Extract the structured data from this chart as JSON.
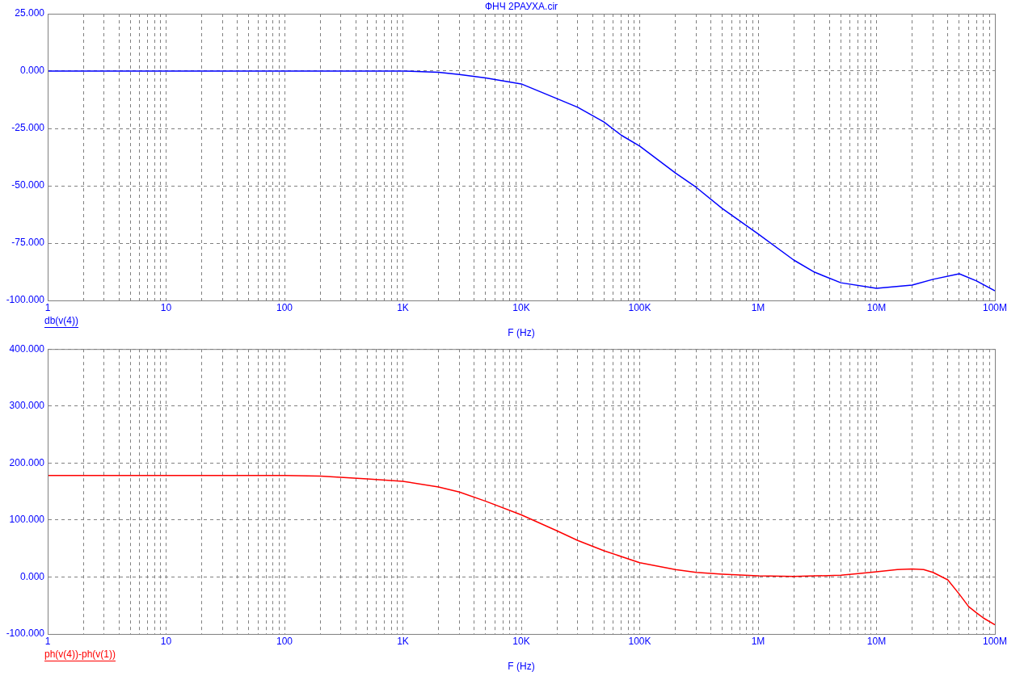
{
  "chart_data": [
    {
      "type": "line",
      "title": "ФНЧ 2РАУХА.cir",
      "xlabel": "F (Hz)",
      "log": "x",
      "grid": true,
      "legend": "bottom left",
      "xlim": [
        1,
        100000000
      ],
      "ylim": [
        -100,
        25
      ],
      "xticks": [
        1,
        {
          "value": 2,
          "label": null
        },
        {
          "value": 3,
          "label": null
        },
        {
          "value": 4,
          "label": null
        },
        {
          "value": 5,
          "label": null
        },
        {
          "value": 6,
          "label": null
        },
        {
          "value": 7,
          "label": null
        },
        {
          "value": 8,
          "label": null
        },
        {
          "value": 9,
          "label": null
        },
        10,
        {
          "value": 20,
          "label": null
        },
        {
          "value": 30,
          "label": null
        },
        {
          "value": 40,
          "label": null
        },
        {
          "value": 50,
          "label": null
        },
        {
          "value": 60,
          "label": null
        },
        {
          "value": 70,
          "label": null
        },
        {
          "value": 80,
          "label": null
        },
        {
          "value": 90,
          "label": null
        },
        100,
        {
          "value": 200,
          "label": null
        },
        {
          "value": 300,
          "label": null
        },
        {
          "value": 400,
          "label": null
        },
        {
          "value": 500,
          "label": null
        },
        {
          "value": 600,
          "label": null
        },
        {
          "value": 700,
          "label": null
        },
        {
          "value": 800,
          "label": null
        },
        {
          "value": 900,
          "label": null
        },
        {
          "value": 1000,
          "label": "1K"
        },
        {
          "value": 2000,
          "label": null
        },
        {
          "value": 3000,
          "label": null
        },
        {
          "value": 4000,
          "label": null
        },
        {
          "value": 5000,
          "label": null
        },
        {
          "value": 6000,
          "label": null
        },
        {
          "value": 7000,
          "label": null
        },
        {
          "value": 8000,
          "label": null
        },
        {
          "value": 9000,
          "label": null
        },
        {
          "value": 10000,
          "label": "10K"
        },
        {
          "value": 20000,
          "label": null
        },
        {
          "value": 30000,
          "label": null
        },
        {
          "value": 40000,
          "label": null
        },
        {
          "value": 50000,
          "label": null
        },
        {
          "value": 60000,
          "label": null
        },
        {
          "value": 70000,
          "label": null
        },
        {
          "value": 80000,
          "label": null
        },
        {
          "value": 90000,
          "label": null
        },
        {
          "value": 100000,
          "label": "100K"
        },
        {
          "value": 200000,
          "label": null
        },
        {
          "value": 300000,
          "label": null
        },
        {
          "value": 400000,
          "label": null
        },
        {
          "value": 500000,
          "label": null
        },
        {
          "value": 600000,
          "label": null
        },
        {
          "value": 700000,
          "label": null
        },
        {
          "value": 800000,
          "label": null
        },
        {
          "value": 900000,
          "label": null
        },
        {
          "value": 1000000,
          "label": "1M"
        },
        {
          "value": 2000000,
          "label": null
        },
        {
          "value": 3000000,
          "label": null
        },
        {
          "value": 4000000,
          "label": null
        },
        {
          "value": 5000000,
          "label": null
        },
        {
          "value": 6000000,
          "label": null
        },
        {
          "value": 7000000,
          "label": null
        },
        {
          "value": 8000000,
          "label": null
        },
        {
          "value": 9000000,
          "label": null
        },
        {
          "value": 10000000,
          "label": "10M"
        },
        {
          "value": 20000000,
          "label": null
        },
        {
          "value": 30000000,
          "label": null
        },
        {
          "value": 40000000,
          "label": null
        },
        {
          "value": 50000000,
          "label": null
        },
        {
          "value": 60000000,
          "label": null
        },
        {
          "value": 70000000,
          "label": null
        },
        {
          "value": 80000000,
          "label": null
        },
        {
          "value": 90000000,
          "label": null
        },
        {
          "value": 100000000,
          "label": "100M"
        }
      ],
      "yticks": [
        {
          "value": -100,
          "label": "-100.000"
        },
        {
          "value": -75,
          "label": "-75.000"
        },
        {
          "value": -50,
          "label": "-50.000"
        },
        {
          "value": -25,
          "label": "-25.000"
        },
        {
          "value": 0,
          "label": "0.000"
        },
        {
          "value": 25,
          "label": "25.000"
        }
      ],
      "series": [
        {
          "name": "db(v(4))",
          "color": "#0000ff",
          "x": [
            1,
            10,
            100,
            1000,
            2000,
            3000,
            5000,
            10000,
            20000,
            30000,
            50000,
            70000,
            100000,
            200000,
            300000,
            500000,
            1000000,
            2000000,
            3000000,
            5000000,
            10000000,
            20000000,
            30000000,
            50000000,
            70000000,
            100000000
          ],
          "values": [
            0,
            0,
            0,
            0,
            -0.5,
            -1.5,
            -3,
            -5.6,
            -12,
            -15.8,
            -22.2,
            -28,
            -32.7,
            -44.4,
            -50.7,
            -60,
            -71,
            -82.4,
            -87.7,
            -92.3,
            -94.7,
            -93.3,
            -90.8,
            -88.4,
            -91.5,
            -95.8
          ]
        }
      ]
    },
    {
      "type": "line",
      "xlabel": "F (Hz)",
      "log": "x",
      "grid": true,
      "legend": "bottom left",
      "xlim": [
        1,
        100000000
      ],
      "ylim": [
        -100,
        400
      ],
      "xticks": [
        1,
        {
          "value": 2,
          "label": null
        },
        {
          "value": 3,
          "label": null
        },
        {
          "value": 4,
          "label": null
        },
        {
          "value": 5,
          "label": null
        },
        {
          "value": 6,
          "label": null
        },
        {
          "value": 7,
          "label": null
        },
        {
          "value": 8,
          "label": null
        },
        {
          "value": 9,
          "label": null
        },
        10,
        {
          "value": 20,
          "label": null
        },
        {
          "value": 30,
          "label": null
        },
        {
          "value": 40,
          "label": null
        },
        {
          "value": 50,
          "label": null
        },
        {
          "value": 60,
          "label": null
        },
        {
          "value": 70,
          "label": null
        },
        {
          "value": 80,
          "label": null
        },
        {
          "value": 90,
          "label": null
        },
        100,
        {
          "value": 200,
          "label": null
        },
        {
          "value": 300,
          "label": null
        },
        {
          "value": 400,
          "label": null
        },
        {
          "value": 500,
          "label": null
        },
        {
          "value": 600,
          "label": null
        },
        {
          "value": 700,
          "label": null
        },
        {
          "value": 800,
          "label": null
        },
        {
          "value": 900,
          "label": null
        },
        {
          "value": 1000,
          "label": "1K"
        },
        {
          "value": 2000,
          "label": null
        },
        {
          "value": 3000,
          "label": null
        },
        {
          "value": 4000,
          "label": null
        },
        {
          "value": 5000,
          "label": null
        },
        {
          "value": 6000,
          "label": null
        },
        {
          "value": 7000,
          "label": null
        },
        {
          "value": 8000,
          "label": null
        },
        {
          "value": 9000,
          "label": null
        },
        {
          "value": 10000,
          "label": "10K"
        },
        {
          "value": 20000,
          "label": null
        },
        {
          "value": 30000,
          "label": null
        },
        {
          "value": 40000,
          "label": null
        },
        {
          "value": 50000,
          "label": null
        },
        {
          "value": 60000,
          "label": null
        },
        {
          "value": 70000,
          "label": null
        },
        {
          "value": 80000,
          "label": null
        },
        {
          "value": 90000,
          "label": null
        },
        {
          "value": 100000,
          "label": "100K"
        },
        {
          "value": 200000,
          "label": null
        },
        {
          "value": 300000,
          "label": null
        },
        {
          "value": 400000,
          "label": null
        },
        {
          "value": 500000,
          "label": null
        },
        {
          "value": 600000,
          "label": null
        },
        {
          "value": 700000,
          "label": null
        },
        {
          "value": 800000,
          "label": null
        },
        {
          "value": 900000,
          "label": null
        },
        {
          "value": 1000000,
          "label": "1M"
        },
        {
          "value": 2000000,
          "label": null
        },
        {
          "value": 3000000,
          "label": null
        },
        {
          "value": 4000000,
          "label": null
        },
        {
          "value": 5000000,
          "label": null
        },
        {
          "value": 6000000,
          "label": null
        },
        {
          "value": 7000000,
          "label": null
        },
        {
          "value": 8000000,
          "label": null
        },
        {
          "value": 9000000,
          "label": null
        },
        {
          "value": 10000000,
          "label": "10M"
        },
        {
          "value": 20000000,
          "label": null
        },
        {
          "value": 30000000,
          "label": null
        },
        {
          "value": 40000000,
          "label": null
        },
        {
          "value": 50000000,
          "label": null
        },
        {
          "value": 60000000,
          "label": null
        },
        {
          "value": 70000000,
          "label": null
        },
        {
          "value": 80000000,
          "label": null
        },
        {
          "value": 90000000,
          "label": null
        },
        {
          "value": 100000000,
          "label": "100M"
        }
      ],
      "yticks": [
        {
          "value": -100,
          "label": "-100.000"
        },
        {
          "value": 0,
          "label": "0.000"
        },
        {
          "value": 100,
          "label": "100.000"
        },
        {
          "value": 200,
          "label": "200.000"
        },
        {
          "value": 300,
          "label": "300.000"
        },
        {
          "value": 400,
          "label": "400.000"
        }
      ],
      "series": [
        {
          "name": "ph(v(4))-ph(v(1))",
          "color": "#ff0000",
          "x": [
            1,
            10,
            100,
            200,
            500,
            1000,
            2000,
            3000,
            5000,
            10000,
            20000,
            30000,
            50000,
            100000,
            200000,
            300000,
            500000,
            1000000,
            2000000,
            5000000,
            7000000,
            10000000,
            15000000,
            20000000,
            25000000,
            30000000,
            40000000,
            50000000,
            60000000,
            70000000,
            80000000,
            100000000
          ],
          "values": [
            178,
            178,
            178,
            177,
            172,
            168,
            158,
            149,
            133,
            109,
            81,
            64,
            46,
            25,
            13,
            8,
            5,
            2,
            1,
            3,
            6,
            9,
            13,
            14,
            13,
            8,
            -5,
            -30,
            -52,
            -63,
            -72,
            -84
          ]
        }
      ]
    }
  ]
}
